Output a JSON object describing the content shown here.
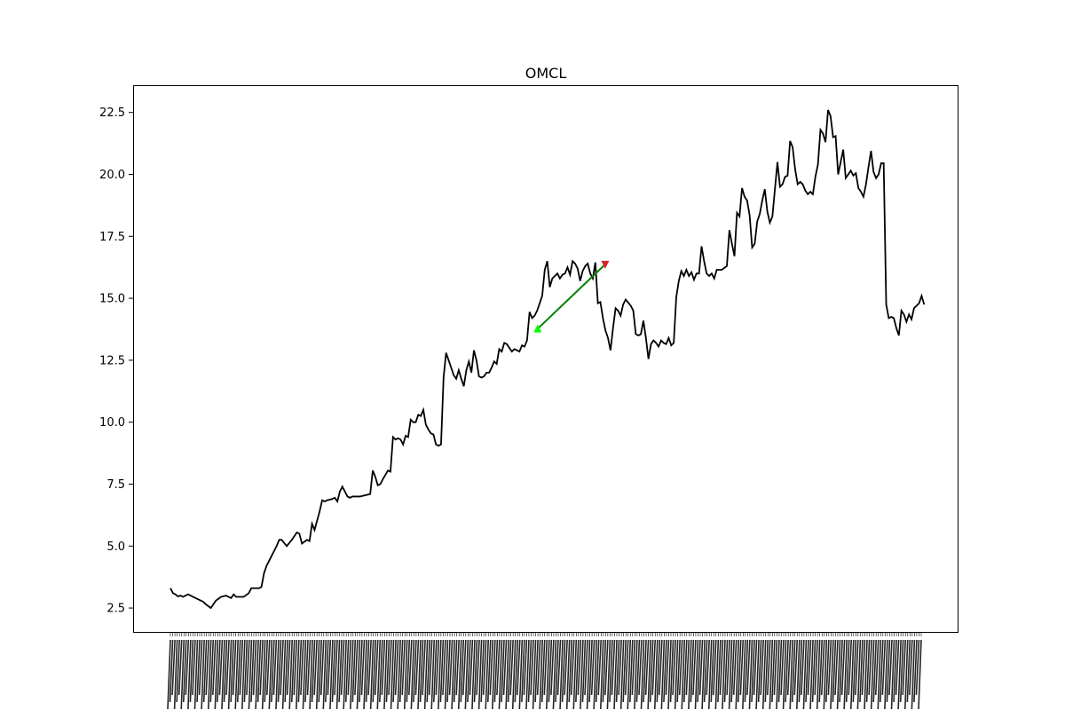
{
  "chart_data": {
    "type": "line",
    "title": "OMCL",
    "xlabel": "",
    "ylabel": "",
    "ylim": [
      1.5,
      23.6
    ],
    "yticks": [
      2.5,
      5.0,
      7.5,
      10.0,
      12.5,
      15.0,
      17.5,
      20.0,
      22.5
    ],
    "ytick_labels": [
      "2.5",
      "5.0",
      "7.5",
      "10.0",
      "12.5",
      "15.0",
      "17.5",
      "20.0",
      "22.5"
    ],
    "grid": false,
    "line_color": "#000000",
    "x_count": 334,
    "anchors": [
      [
        0,
        3.3
      ],
      [
        1,
        3.1
      ],
      [
        2,
        3.05
      ],
      [
        3,
        2.97
      ],
      [
        4,
        3.0
      ],
      [
        5,
        2.95
      ],
      [
        6,
        3.0
      ],
      [
        7,
        3.05
      ],
      [
        8,
        3.0
      ],
      [
        9,
        2.95
      ],
      [
        10,
        2.9
      ],
      [
        11,
        2.85
      ],
      [
        12,
        2.8
      ],
      [
        13,
        2.75
      ],
      [
        14,
        2.65
      ],
      [
        16,
        2.5
      ],
      [
        18,
        2.8
      ],
      [
        20,
        2.95
      ],
      [
        22,
        3.0
      ],
      [
        24,
        2.9
      ],
      [
        25,
        3.05
      ],
      [
        26,
        2.95
      ],
      [
        29,
        2.95
      ],
      [
        31,
        3.1
      ],
      [
        32,
        3.3
      ],
      [
        33,
        3.3
      ],
      [
        35,
        3.3
      ],
      [
        36,
        3.35
      ],
      [
        37,
        3.9
      ],
      [
        38,
        4.2
      ],
      [
        40,
        4.6
      ],
      [
        42,
        5.0
      ],
      [
        43,
        5.25
      ],
      [
        44,
        5.25
      ],
      [
        46,
        5.0
      ],
      [
        48,
        5.25
      ],
      [
        50,
        5.55
      ],
      [
        51,
        5.5
      ],
      [
        52,
        5.1
      ],
      [
        54,
        5.25
      ],
      [
        55,
        5.2
      ],
      [
        56,
        5.9
      ],
      [
        57,
        5.65
      ],
      [
        59,
        6.4
      ],
      [
        60,
        6.85
      ],
      [
        61,
        6.8
      ],
      [
        62,
        6.85
      ],
      [
        64,
        6.9
      ],
      [
        65,
        6.95
      ],
      [
        66,
        6.8
      ],
      [
        67,
        7.2
      ],
      [
        68,
        7.4
      ],
      [
        69,
        7.2
      ],
      [
        70,
        7.0
      ],
      [
        71,
        6.95
      ],
      [
        72,
        7.0
      ],
      [
        75,
        7.0
      ],
      [
        77,
        7.05
      ],
      [
        79,
        7.1
      ],
      [
        80,
        8.05
      ],
      [
        81,
        7.8
      ],
      [
        82,
        7.45
      ],
      [
        83,
        7.5
      ],
      [
        84,
        7.7
      ],
      [
        86,
        8.05
      ],
      [
        87,
        8.0
      ],
      [
        88,
        9.4
      ],
      [
        89,
        9.3
      ],
      [
        90,
        9.35
      ],
      [
        91,
        9.3
      ],
      [
        92,
        9.1
      ],
      [
        93,
        9.45
      ],
      [
        94,
        9.4
      ],
      [
        95,
        10.1
      ],
      [
        96,
        10.0
      ],
      [
        97,
        10.0
      ],
      [
        98,
        10.3
      ],
      [
        99,
        10.25
      ],
      [
        100,
        10.5
      ],
      [
        101,
        9.9
      ],
      [
        102,
        9.7
      ],
      [
        103,
        9.55
      ],
      [
        104,
        9.5
      ],
      [
        105,
        9.1
      ],
      [
        106,
        9.05
      ],
      [
        107,
        9.1
      ],
      [
        108,
        11.8
      ],
      [
        109,
        12.8
      ],
      [
        110,
        12.5
      ],
      [
        111,
        12.2
      ],
      [
        112,
        11.9
      ],
      [
        113,
        11.75
      ],
      [
        114,
        12.1
      ],
      [
        115,
        11.75
      ],
      [
        116,
        11.45
      ],
      [
        117,
        12.1
      ],
      [
        118,
        12.45
      ],
      [
        119,
        12.0
      ],
      [
        120,
        12.9
      ],
      [
        121,
        12.5
      ],
      [
        122,
        11.85
      ],
      [
        123,
        11.8
      ],
      [
        124,
        11.85
      ],
      [
        125,
        12.0
      ],
      [
        126,
        12.0
      ],
      [
        127,
        12.2
      ],
      [
        128,
        12.45
      ],
      [
        129,
        12.35
      ],
      [
        130,
        12.95
      ],
      [
        131,
        12.85
      ],
      [
        132,
        13.2
      ],
      [
        133,
        13.15
      ],
      [
        134,
        13.0
      ],
      [
        135,
        12.85
      ],
      [
        136,
        12.95
      ],
      [
        137,
        12.9
      ],
      [
        138,
        12.85
      ],
      [
        139,
        13.1
      ],
      [
        140,
        13.05
      ],
      [
        141,
        13.3
      ],
      [
        142,
        14.45
      ],
      [
        143,
        14.2
      ],
      [
        144,
        14.3
      ],
      [
        145,
        14.5
      ],
      [
        146,
        14.8
      ],
      [
        147,
        15.1
      ],
      [
        148,
        16.15
      ],
      [
        149,
        16.5
      ],
      [
        150,
        15.45
      ],
      [
        151,
        15.8
      ],
      [
        152,
        15.9
      ],
      [
        153,
        16.0
      ],
      [
        154,
        15.8
      ],
      [
        155,
        15.95
      ],
      [
        156,
        16.0
      ],
      [
        157,
        16.25
      ],
      [
        158,
        15.95
      ],
      [
        159,
        16.5
      ],
      [
        160,
        16.4
      ],
      [
        161,
        16.2
      ],
      [
        162,
        15.7
      ],
      [
        163,
        16.1
      ],
      [
        164,
        16.3
      ],
      [
        165,
        16.4
      ],
      [
        166,
        16.0
      ],
      [
        167,
        15.8
      ],
      [
        168,
        16.45
      ],
      [
        169,
        14.8
      ],
      [
        170,
        14.85
      ],
      [
        171,
        14.2
      ],
      [
        172,
        13.7
      ],
      [
        173,
        13.4
      ],
      [
        174,
        12.9
      ],
      [
        175,
        13.8
      ],
      [
        176,
        14.6
      ],
      [
        177,
        14.5
      ],
      [
        178,
        14.3
      ],
      [
        179,
        14.75
      ],
      [
        180,
        14.95
      ],
      [
        182,
        14.7
      ],
      [
        183,
        14.5
      ],
      [
        184,
        13.55
      ],
      [
        185,
        13.5
      ],
      [
        186,
        13.55
      ],
      [
        187,
        14.1
      ],
      [
        188,
        13.4
      ],
      [
        189,
        12.55
      ],
      [
        190,
        13.15
      ],
      [
        191,
        13.3
      ],
      [
        192,
        13.2
      ],
      [
        193,
        13.05
      ],
      [
        194,
        13.3
      ],
      [
        195,
        13.2
      ],
      [
        196,
        13.15
      ],
      [
        197,
        13.4
      ],
      [
        198,
        13.1
      ],
      [
        199,
        13.2
      ],
      [
        200,
        15.05
      ],
      [
        201,
        15.7
      ],
      [
        202,
        16.1
      ],
      [
        203,
        15.9
      ],
      [
        204,
        16.15
      ],
      [
        205,
        15.9
      ],
      [
        206,
        16.05
      ],
      [
        207,
        15.75
      ],
      [
        208,
        16.0
      ],
      [
        209,
        16.0
      ],
      [
        210,
        17.1
      ],
      [
        211,
        16.5
      ],
      [
        212,
        16.0
      ],
      [
        213,
        15.9
      ],
      [
        214,
        16.0
      ],
      [
        215,
        15.8
      ],
      [
        216,
        16.15
      ],
      [
        218,
        16.15
      ],
      [
        220,
        16.3
      ],
      [
        221,
        17.75
      ],
      [
        222,
        17.2
      ],
      [
        223,
        16.7
      ],
      [
        224,
        18.45
      ],
      [
        225,
        18.3
      ],
      [
        226,
        19.45
      ],
      [
        227,
        19.1
      ],
      [
        228,
        18.95
      ],
      [
        229,
        18.35
      ],
      [
        230,
        17.05
      ],
      [
        231,
        17.2
      ],
      [
        232,
        18.1
      ],
      [
        233,
        18.4
      ],
      [
        234,
        18.95
      ],
      [
        235,
        19.4
      ],
      [
        236,
        18.5
      ],
      [
        237,
        18.05
      ],
      [
        238,
        18.3
      ],
      [
        239,
        19.4
      ],
      [
        240,
        20.5
      ],
      [
        241,
        19.5
      ],
      [
        242,
        19.6
      ],
      [
        243,
        19.9
      ],
      [
        244,
        19.95
      ],
      [
        245,
        21.35
      ],
      [
        246,
        21.1
      ],
      [
        247,
        20.2
      ],
      [
        248,
        19.6
      ],
      [
        249,
        19.7
      ],
      [
        250,
        19.6
      ],
      [
        251,
        19.35
      ],
      [
        252,
        19.2
      ],
      [
        253,
        19.3
      ],
      [
        254,
        19.2
      ],
      [
        255,
        19.9
      ],
      [
        256,
        20.4
      ],
      [
        257,
        21.8
      ],
      [
        258,
        21.65
      ],
      [
        259,
        21.3
      ],
      [
        260,
        22.6
      ],
      [
        261,
        22.35
      ],
      [
        262,
        21.5
      ],
      [
        263,
        21.55
      ],
      [
        264,
        20.0
      ],
      [
        265,
        20.5
      ],
      [
        266,
        21.0
      ],
      [
        267,
        19.85
      ],
      [
        268,
        20.0
      ],
      [
        269,
        20.15
      ],
      [
        270,
        19.95
      ],
      [
        271,
        20.05
      ],
      [
        272,
        19.45
      ],
      [
        273,
        19.3
      ],
      [
        274,
        19.1
      ],
      [
        275,
        19.6
      ],
      [
        276,
        20.3
      ],
      [
        277,
        20.95
      ],
      [
        278,
        20.1
      ],
      [
        279,
        19.85
      ],
      [
        280,
        20.0
      ],
      [
        281,
        20.45
      ],
      [
        282,
        20.45
      ],
      [
        283,
        14.75
      ],
      [
        284,
        14.2
      ],
      [
        285,
        14.25
      ],
      [
        286,
        14.2
      ],
      [
        287,
        13.8
      ],
      [
        288,
        13.5
      ],
      [
        289,
        14.5
      ],
      [
        290,
        14.35
      ],
      [
        291,
        14.05
      ],
      [
        292,
        14.35
      ],
      [
        293,
        14.15
      ],
      [
        294,
        14.6
      ],
      [
        295,
        14.7
      ],
      [
        296,
        14.8
      ],
      [
        297,
        15.1
      ],
      [
        298,
        14.75
      ]
    ],
    "markers": [
      {
        "type": "buy",
        "x": 145.2,
        "y": 13.77,
        "color": "#00ff00",
        "shape": "triangle-up"
      },
      {
        "type": "sell",
        "x": 171.9,
        "y": 16.37,
        "color": "#d62728",
        "shape": "triangle-down"
      }
    ],
    "arrow": {
      "from": [
        145.2,
        13.77
      ],
      "to": [
        171.9,
        16.37
      ],
      "color": "#008000"
    },
    "x_tick_labels": "illegible"
  }
}
